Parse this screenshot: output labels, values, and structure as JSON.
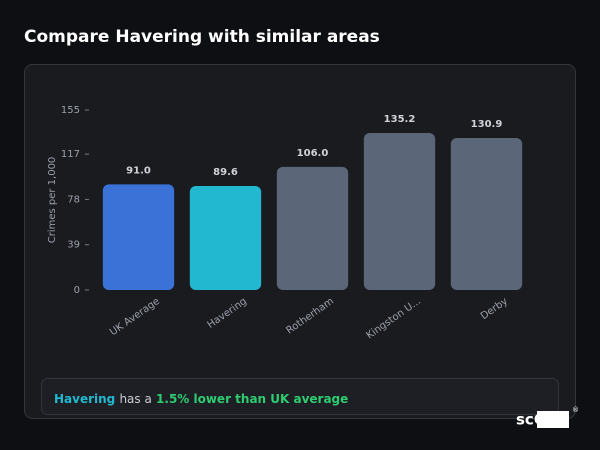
{
  "header": {
    "title": "Compare Havering with similar areas"
  },
  "chart_data": {
    "type": "bar",
    "y_label": "Crimes per 1,000",
    "categories": [
      "UK Average",
      "Havering",
      "Rotherham",
      "Kingston U...",
      "Derby"
    ],
    "values": [
      91.0,
      89.6,
      106.0,
      135.2,
      130.9
    ],
    "value_labels": [
      "91.0",
      "89.6",
      "106.0",
      "135.2",
      "130.9"
    ],
    "colors": [
      "#3a72d8",
      "#22b8cf",
      "#5b6679",
      "#5b6679",
      "#5b6679"
    ],
    "ylim": [
      0,
      155
    ],
    "yticks": [
      0,
      39,
      78,
      117,
      155
    ],
    "grid": false
  },
  "footer": {
    "area": "Havering",
    "text": "has a",
    "comparison": "1.5% lower than UK average"
  },
  "logo": {
    "text": "scOS",
    "mark": "®"
  }
}
